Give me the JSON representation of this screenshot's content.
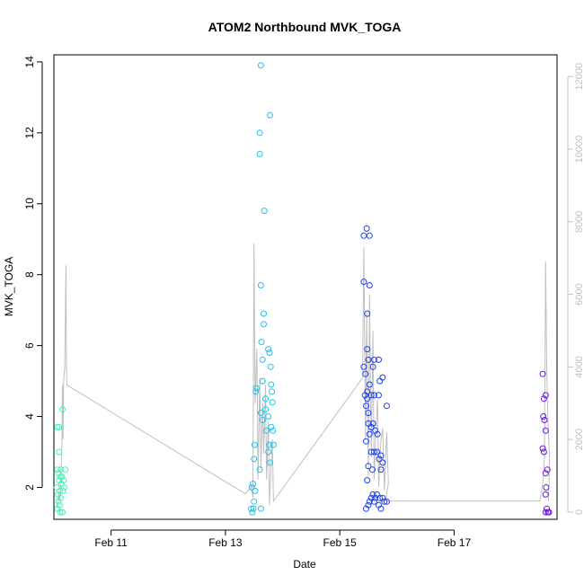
{
  "chart_data": {
    "type": "scatter",
    "title": "ATOM2 Northbound MVK_TOGA",
    "xlabel": "Date",
    "ylabel": "MVK_TOGA",
    "x_unit": "days (Feb)",
    "xlim": [
      10.0,
      18.8
    ],
    "ylim": [
      1.1,
      14.2
    ],
    "y2lim": [
      -200,
      12600
    ],
    "x_ticks": [
      {
        "value": 11,
        "label": "Feb 11"
      },
      {
        "value": 13,
        "label": "Feb 13"
      },
      {
        "value": 15,
        "label": "Feb 15"
      },
      {
        "value": 17,
        "label": "Feb 17"
      }
    ],
    "y_ticks": [
      2,
      4,
      6,
      8,
      10,
      12,
      14
    ],
    "y2_ticks": [
      0,
      2000,
      4000,
      6000,
      8000,
      10000,
      12000
    ],
    "grid": false,
    "legend": "none",
    "colors": {
      "group1": "#3ff5b0",
      "group2": "#1fc4e8",
      "group3": "#1c3ff0",
      "group4": "#6b17d6",
      "secondary_line": "#bfbfbf",
      "right_axis": "#bfbfbf"
    },
    "series": [
      {
        "color_key": "group1",
        "points": [
          [
            10.06,
            2.5
          ],
          [
            10.08,
            2.4
          ],
          [
            10.09,
            2.2
          ],
          [
            10.05,
            2.0
          ],
          [
            10.1,
            1.9
          ],
          [
            10.07,
            1.8
          ],
          [
            10.12,
            1.7
          ],
          [
            10.08,
            1.6
          ],
          [
            10.1,
            1.5
          ],
          [
            10.06,
            1.4
          ],
          [
            10.11,
            1.3
          ],
          [
            10.15,
            1.3
          ],
          [
            10.09,
            3.0
          ],
          [
            10.06,
            3.7
          ],
          [
            10.09,
            3.7
          ],
          [
            10.15,
            4.2
          ],
          [
            10.12,
            2.5
          ],
          [
            10.14,
            2.3
          ],
          [
            10.17,
            2.2
          ],
          [
            10.2,
            2.5
          ],
          [
            10.13,
            2.1
          ],
          [
            10.16,
            1.9
          ],
          [
            10.18,
            2.0
          ],
          [
            10.11,
            2.3
          ]
        ]
      },
      {
        "color_key": "group2",
        "points": [
          [
            13.47,
            1.3
          ],
          [
            13.49,
            1.4
          ],
          [
            13.45,
            1.4
          ],
          [
            13.5,
            1.6
          ],
          [
            13.46,
            2.0
          ],
          [
            13.48,
            2.1
          ],
          [
            13.52,
            1.9
          ],
          [
            13.5,
            2.8
          ],
          [
            13.51,
            3.2
          ],
          [
            13.53,
            4.7
          ],
          [
            13.54,
            4.8
          ],
          [
            13.62,
            13.9
          ],
          [
            13.6,
            12.0
          ],
          [
            13.6,
            11.4
          ],
          [
            13.68,
            9.8
          ],
          [
            13.62,
            7.7
          ],
          [
            13.67,
            6.9
          ],
          [
            13.67,
            6.6
          ],
          [
            13.63,
            6.1
          ],
          [
            13.65,
            5.6
          ],
          [
            13.65,
            5.0
          ],
          [
            13.62,
            4.1
          ],
          [
            13.65,
            3.9
          ],
          [
            13.7,
            4.5
          ],
          [
            13.7,
            4.2
          ],
          [
            13.75,
            4.0
          ],
          [
            13.72,
            3.6
          ],
          [
            13.77,
            3.2
          ],
          [
            13.75,
            3.0
          ],
          [
            13.78,
            2.7
          ],
          [
            13.6,
            2.5
          ],
          [
            13.62,
            1.4
          ],
          [
            13.78,
            12.5
          ],
          [
            13.75,
            5.9
          ],
          [
            13.77,
            5.8
          ],
          [
            13.79,
            5.4
          ],
          [
            13.8,
            4.9
          ],
          [
            13.81,
            4.7
          ],
          [
            13.82,
            4.4
          ],
          [
            13.8,
            3.7
          ],
          [
            13.83,
            3.6
          ],
          [
            13.84,
            3.2
          ]
        ]
      },
      {
        "color_key": "group3",
        "points": [
          [
            15.42,
            9.1
          ],
          [
            15.47,
            9.3
          ],
          [
            15.52,
            9.1
          ],
          [
            15.42,
            7.8
          ],
          [
            15.52,
            7.7
          ],
          [
            15.48,
            6.9
          ],
          [
            15.48,
            5.9
          ],
          [
            15.42,
            5.4
          ],
          [
            15.5,
            5.6
          ],
          [
            15.6,
            5.6
          ],
          [
            15.68,
            5.6
          ],
          [
            15.58,
            5.4
          ],
          [
            15.45,
            5.2
          ],
          [
            15.52,
            4.9
          ],
          [
            15.48,
            4.7
          ],
          [
            15.44,
            4.6
          ],
          [
            15.55,
            4.6
          ],
          [
            15.6,
            4.6
          ],
          [
            15.68,
            4.6
          ],
          [
            15.48,
            4.5
          ],
          [
            15.46,
            4.3
          ],
          [
            15.5,
            4.1
          ],
          [
            15.75,
            5.1
          ],
          [
            15.7,
            5.0
          ],
          [
            15.82,
            4.3
          ],
          [
            15.5,
            3.8
          ],
          [
            15.55,
            3.7
          ],
          [
            15.58,
            3.8
          ],
          [
            15.62,
            3.6
          ],
          [
            15.66,
            3.5
          ],
          [
            15.52,
            3.5
          ],
          [
            15.46,
            3.3
          ],
          [
            15.55,
            3.0
          ],
          [
            15.6,
            3.0
          ],
          [
            15.65,
            3.0
          ],
          [
            15.72,
            2.9
          ],
          [
            15.69,
            2.8
          ],
          [
            15.5,
            2.6
          ],
          [
            15.57,
            2.5
          ],
          [
            15.48,
            2.2
          ],
          [
            15.75,
            2.7
          ],
          [
            15.72,
            2.5
          ],
          [
            15.6,
            1.6
          ],
          [
            15.65,
            1.8
          ],
          [
            15.7,
            1.7
          ],
          [
            15.75,
            1.7
          ],
          [
            15.78,
            1.6
          ],
          [
            15.82,
            1.6
          ],
          [
            15.68,
            1.5
          ],
          [
            15.72,
            1.4
          ],
          [
            15.55,
            1.7
          ],
          [
            15.5,
            1.5
          ],
          [
            15.46,
            1.4
          ],
          [
            15.58,
            1.8
          ],
          [
            15.62,
            1.7
          ],
          [
            15.52,
            1.6
          ]
        ]
      },
      {
        "color_key": "group4",
        "points": [
          [
            18.55,
            5.2
          ],
          [
            18.6,
            4.6
          ],
          [
            18.57,
            4.5
          ],
          [
            18.56,
            4.0
          ],
          [
            18.58,
            3.9
          ],
          [
            18.6,
            3.6
          ],
          [
            18.55,
            3.1
          ],
          [
            18.57,
            3.0
          ],
          [
            18.6,
            2.4
          ],
          [
            18.63,
            2.5
          ],
          [
            18.61,
            2.0
          ],
          [
            18.6,
            1.8
          ],
          [
            18.62,
            1.4
          ],
          [
            18.64,
            1.3
          ],
          [
            18.6,
            1.3
          ],
          [
            18.66,
            1.3
          ]
        ]
      }
    ],
    "secondary_line": {
      "axis": "right",
      "points": [
        [
          10.05,
          100
        ],
        [
          10.08,
          500
        ],
        [
          10.1,
          300
        ],
        [
          10.12,
          900
        ],
        [
          10.14,
          1800
        ],
        [
          10.15,
          3500
        ],
        [
          10.16,
          2000
        ],
        [
          10.17,
          3600
        ],
        [
          10.19,
          4000
        ],
        [
          10.21,
          6800
        ],
        [
          10.22,
          3800
        ],
        [
          10.23,
          3500
        ],
        [
          13.35,
          500
        ],
        [
          13.45,
          700
        ],
        [
          13.48,
          400
        ],
        [
          13.5,
          7400
        ],
        [
          13.52,
          3000
        ],
        [
          13.55,
          4500
        ],
        [
          13.57,
          900
        ],
        [
          13.6,
          3700
        ],
        [
          13.62,
          1200
        ],
        [
          13.65,
          3000
        ],
        [
          13.67,
          1600
        ],
        [
          13.7,
          3500
        ],
        [
          13.72,
          900
        ],
        [
          13.75,
          2500
        ],
        [
          13.77,
          200
        ],
        [
          13.8,
          1300
        ],
        [
          13.82,
          2000
        ],
        [
          13.84,
          300
        ],
        [
          15.4,
          3700
        ],
        [
          15.42,
          7300
        ],
        [
          15.45,
          2000
        ],
        [
          15.47,
          5500
        ],
        [
          15.5,
          1000
        ],
        [
          15.52,
          6000
        ],
        [
          15.55,
          1500
        ],
        [
          15.58,
          5000
        ],
        [
          15.6,
          900
        ],
        [
          15.63,
          2200
        ],
        [
          15.66,
          3100
        ],
        [
          15.68,
          700
        ],
        [
          15.72,
          2000
        ],
        [
          15.75,
          2300
        ],
        [
          15.78,
          600
        ],
        [
          15.82,
          2200
        ],
        [
          15.85,
          800
        ],
        [
          15.8,
          300
        ],
        [
          18.5,
          300
        ],
        [
          18.55,
          800
        ],
        [
          18.58,
          1500
        ],
        [
          18.6,
          6900
        ],
        [
          18.62,
          4000
        ],
        [
          18.64,
          2500
        ],
        [
          18.67,
          1500
        ],
        [
          18.65,
          300
        ]
      ]
    }
  }
}
